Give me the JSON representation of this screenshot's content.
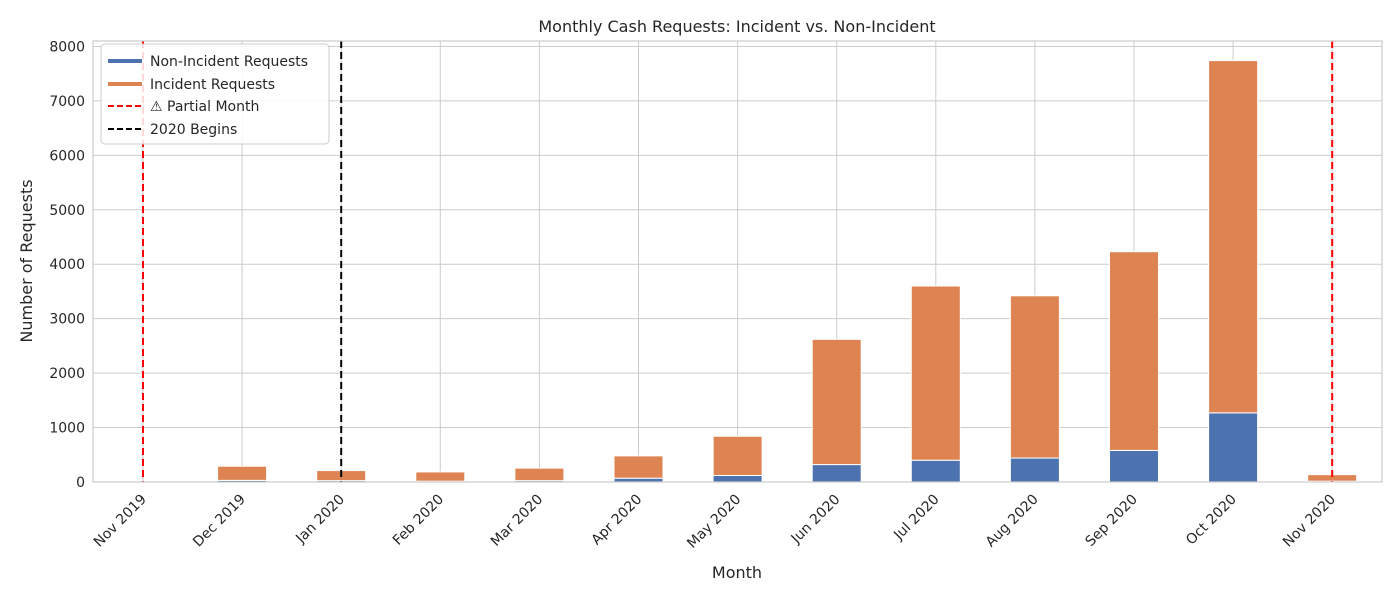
{
  "chart_data": {
    "type": "bar",
    "stacked": true,
    "title": "Monthly Cash Requests: Incident vs. Non-Incident",
    "xlabel": "Month",
    "ylabel": "Number of Requests",
    "ylim": [
      0,
      8100
    ],
    "yticks": [
      "0",
      "1000",
      "2000",
      "3000",
      "4000",
      "5000",
      "6000",
      "7000",
      "8000"
    ],
    "categories": [
      "Nov 2019",
      "Dec 2019",
      "Jan 2020",
      "Feb 2020",
      "Mar 2020",
      "Apr 2020",
      "May 2020",
      "Jun 2020",
      "Jul 2020",
      "Aug 2020",
      "Sep 2020",
      "Oct 2020",
      "Nov 2020"
    ],
    "series": [
      {
        "name": "Non-Incident Requests",
        "color": "#4c72b0",
        "values": [
          1,
          30,
          25,
          15,
          25,
          70,
          120,
          320,
          400,
          440,
          580,
          1270,
          15
        ]
      },
      {
        "name": "Incident Requests",
        "color": "#dd8452",
        "values": [
          4,
          260,
          185,
          170,
          230,
          410,
          720,
          2300,
          3200,
          2980,
          3650,
          6470,
          120
        ]
      }
    ],
    "reference_lines": [
      {
        "label": "⚠ Partial Month",
        "color": "#ff0000",
        "style": "dashed",
        "positions": [
          "Nov 2019",
          "Nov 2020"
        ]
      },
      {
        "label": "2020 Begins",
        "color": "#000000",
        "style": "dashed",
        "positions": [
          "Jan 2020"
        ]
      }
    ],
    "grid": true,
    "legend_position": "top-left"
  }
}
